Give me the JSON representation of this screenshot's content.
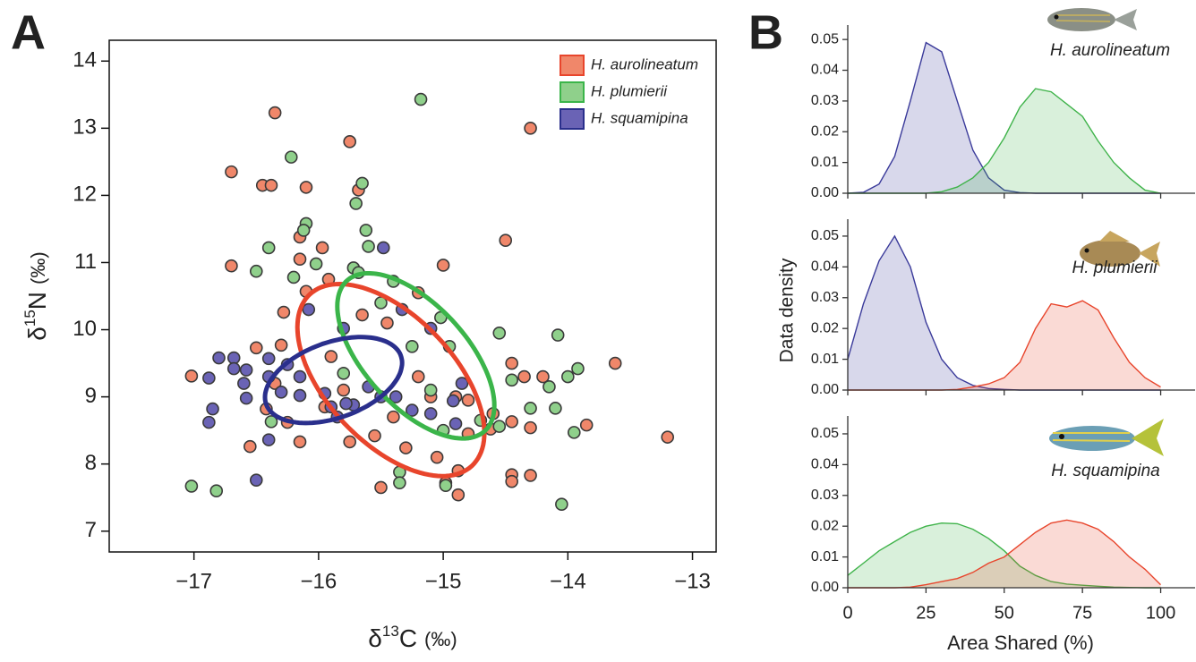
{
  "chart_data": [
    {
      "type": "scatter",
      "panel_label": "A",
      "xlabel": [
        "δ",
        "13",
        "C",
        "(‰)"
      ],
      "ylabel": [
        "δ",
        "15",
        "N",
        "(‰)"
      ],
      "xlim": [
        -17.68,
        -12.81
      ],
      "ylim": [
        6.69,
        14.31
      ],
      "xticks": [
        {
          "value": -17,
          "label": "−17"
        },
        {
          "value": -16,
          "label": "−16"
        },
        {
          "value": -15,
          "label": "−15"
        },
        {
          "value": -14,
          "label": "−14"
        },
        {
          "value": -13,
          "label": "−13"
        }
      ],
      "yticks": [
        7,
        8,
        9,
        10,
        11,
        12,
        13,
        14
      ],
      "legend": "top-right",
      "series": [
        {
          "name": "H. aurolineatum",
          "color": "#f0876a",
          "x": [
            -16.35,
            -15.75,
            -14.3,
            -16.7,
            -16.45,
            -16.38,
            -16.1,
            -15.68,
            -16.15,
            -14.5,
            -15.97,
            -16.15,
            -16.7,
            -15.0,
            -15.92,
            -16.1,
            -15.2,
            -16.28,
            -15.65,
            -15.45,
            -16.3,
            -16.5,
            -17.02,
            -16.35,
            -15.9,
            -13.62,
            -14.45,
            -14.35,
            -14.2,
            -16.42,
            -16.25,
            -16.55,
            -16.15,
            -15.75,
            -15.55,
            -14.8,
            -14.62,
            -14.45,
            -13.2,
            -13.85,
            -14.3,
            -15.05,
            -14.88,
            -14.45,
            -14.3,
            -14.45,
            -15.5,
            -14.98,
            -14.88,
            -15.3,
            -15.1,
            -14.9,
            -15.8,
            -15.95,
            -14.8,
            -15.2,
            -14.6,
            -15.4
          ],
          "values": [
            13.23,
            12.8,
            13.0,
            12.35,
            12.15,
            12.15,
            12.12,
            12.08,
            11.38,
            11.33,
            11.22,
            11.05,
            10.95,
            10.96,
            10.75,
            10.57,
            10.55,
            10.26,
            10.22,
            10.1,
            9.77,
            9.73,
            9.31,
            9.2,
            9.6,
            9.5,
            9.5,
            9.3,
            9.3,
            8.82,
            8.62,
            8.26,
            8.33,
            8.33,
            8.42,
            8.45,
            8.52,
            8.63,
            8.4,
            8.58,
            8.54,
            8.1,
            7.9,
            7.84,
            7.83,
            7.74,
            7.65,
            7.72,
            7.54,
            8.24,
            9.0,
            9.0,
            9.1,
            8.85,
            8.95,
            9.3,
            8.75,
            8.7
          ],
          "ellipse": {
            "color": "#e8452c",
            "center": [
              -15.42,
              9.25
            ],
            "rx": 0.75,
            "ry": 1.43,
            "rho": -0.55
          }
        },
        {
          "name": "H. plumierii",
          "color": "#8fd08b",
          "x": [
            -15.18,
            -16.22,
            -15.65,
            -15.7,
            -16.1,
            -16.12,
            -15.62,
            -16.4,
            -15.6,
            -16.02,
            -16.5,
            -15.72,
            -15.68,
            -16.2,
            -15.4,
            -15.5,
            -15.02,
            -14.55,
            -14.08,
            -15.25,
            -14.95,
            -14.45,
            -14.0,
            -13.92,
            -14.15,
            -14.3,
            -14.1,
            -13.95,
            -14.55,
            -15.0,
            -15.35,
            -15.35,
            -14.98,
            -14.05,
            -17.02,
            -16.82,
            -16.38,
            -15.8,
            -15.1,
            -14.7
          ],
          "values": [
            13.43,
            12.57,
            12.18,
            11.88,
            11.58,
            11.48,
            11.48,
            11.22,
            11.24,
            10.98,
            10.87,
            10.92,
            10.85,
            10.78,
            10.72,
            10.4,
            10.18,
            9.95,
            9.92,
            9.75,
            9.75,
            9.25,
            9.3,
            9.42,
            9.15,
            8.83,
            8.83,
            8.47,
            8.56,
            8.5,
            7.88,
            7.72,
            7.68,
            7.4,
            7.67,
            7.6,
            8.63,
            9.35,
            9.1,
            8.65
          ],
          "ellipse": {
            "color": "#3bb54a",
            "center": [
              -15.22,
              9.61
            ],
            "rx": 0.63,
            "ry": 1.23,
            "rho": -0.6
          }
        },
        {
          "name": "H. squamipina",
          "color": "#6a63b5",
          "x": [
            -15.48,
            -16.08,
            -15.33,
            -15.1,
            -15.8,
            -16.8,
            -16.68,
            -16.4,
            -16.25,
            -16.68,
            -16.58,
            -16.88,
            -16.6,
            -16.4,
            -16.15,
            -16.3,
            -16.15,
            -16.58,
            -16.85,
            -16.88,
            -16.5,
            -16.4,
            -15.9,
            -15.72,
            -15.78,
            -15.38,
            -15.1,
            -14.9,
            -14.92,
            -15.25,
            -15.5,
            -15.6,
            -15.85,
            -15.95,
            -14.85
          ],
          "values": [
            11.22,
            10.3,
            10.3,
            10.02,
            10.02,
            9.58,
            9.58,
            9.57,
            9.48,
            9.42,
            9.4,
            9.28,
            9.2,
            9.3,
            9.3,
            9.07,
            9.02,
            8.98,
            8.82,
            8.62,
            7.76,
            8.36,
            8.85,
            8.88,
            8.9,
            9.0,
            8.75,
            8.6,
            8.94,
            8.8,
            9.0,
            9.15,
            8.7,
            9.05,
            9.2
          ],
          "ellipse": {
            "color": "#2a2f8c",
            "center": [
              -15.88,
              9.25
            ],
            "rx": 0.55,
            "ry": 0.64,
            "rho": 0.4
          }
        }
      ]
    },
    {
      "type": "area",
      "panel_label": "B",
      "label": "H. aurolineatum",
      "x": [
        0,
        5,
        10,
        15,
        20,
        25,
        30,
        35,
        40,
        45,
        50,
        55,
        60,
        65,
        70,
        75,
        80,
        85,
        90,
        95,
        100
      ],
      "xlim": [
        0,
        111
      ],
      "xticks": [
        0,
        25,
        50,
        75,
        100
      ],
      "ylim": [
        0,
        0.0547
      ],
      "yticks": [
        {
          "value": 0,
          "label": "0.00"
        },
        {
          "value": 0.01,
          "label": "0.01"
        },
        {
          "value": 0.02,
          "label": "0.02"
        },
        {
          "value": 0.03,
          "label": "0.03"
        },
        {
          "value": 0.04,
          "label": "0.04"
        },
        {
          "value": 0.05,
          "label": "0.05"
        }
      ],
      "series": [
        {
          "color": "#3a3a9a",
          "values": [
            0,
            0.0003,
            0.003,
            0.012,
            0.03,
            0.049,
            0.046,
            0.03,
            0.014,
            0.005,
            0.001,
            0.0002,
            0,
            0,
            0,
            0,
            0,
            0,
            0,
            0,
            0
          ]
        },
        {
          "color": "#3fb34a",
          "values": [
            0,
            0,
            0,
            0,
            0,
            0,
            0.0005,
            0.002,
            0.005,
            0.01,
            0.018,
            0.028,
            0.034,
            0.033,
            0.029,
            0.025,
            0.017,
            0.01,
            0.005,
            0.001,
            0
          ]
        }
      ]
    },
    {
      "type": "area",
      "label": "H. plumierii",
      "ylabel": "Data density",
      "x": [
        0,
        5,
        10,
        15,
        20,
        25,
        30,
        35,
        40,
        45,
        50,
        55,
        60,
        65,
        70,
        75,
        80,
        85,
        90,
        95,
        100
      ],
      "xlim": [
        0,
        111
      ],
      "xticks": [
        0,
        25,
        50,
        75,
        100
      ],
      "ylim": [
        0,
        0.0555
      ],
      "yticks": [
        {
          "value": 0,
          "label": "0.00"
        },
        {
          "value": 0.01,
          "label": "0.01"
        },
        {
          "value": 0.02,
          "label": "0.02"
        },
        {
          "value": 0.03,
          "label": "0.03"
        },
        {
          "value": 0.04,
          "label": "0.04"
        },
        {
          "value": 0.05,
          "label": "0.05"
        }
      ],
      "series": [
        {
          "color": "#3a3a9a",
          "values": [
            0.01,
            0.028,
            0.042,
            0.05,
            0.04,
            0.022,
            0.01,
            0.004,
            0.0015,
            0.0005,
            0.0002,
            0,
            0,
            0,
            0,
            0,
            0,
            0,
            0,
            0,
            0
          ]
        },
        {
          "color": "#e8452c",
          "values": [
            0,
            0,
            0,
            0,
            0,
            0,
            0,
            0.0002,
            0.001,
            0.002,
            0.004,
            0.009,
            0.02,
            0.028,
            0.027,
            0.029,
            0.026,
            0.017,
            0.009,
            0.004,
            0.001
          ]
        }
      ]
    },
    {
      "type": "area",
      "label": "H. squamipina",
      "xlabel": "Area Shared (%)",
      "x": [
        0,
        5,
        10,
        15,
        20,
        25,
        30,
        35,
        40,
        45,
        50,
        55,
        60,
        65,
        70,
        75,
        80,
        85,
        90,
        95,
        100
      ],
      "xlim": [
        0,
        111
      ],
      "xticks": [
        0,
        25,
        50,
        75,
        100
      ],
      "ylim": [
        0,
        0.0558
      ],
      "yticks": [
        {
          "value": 0,
          "label": "0.00"
        },
        {
          "value": 0.01,
          "label": "0.01"
        },
        {
          "value": 0.02,
          "label": "0.02"
        },
        {
          "value": 0.03,
          "label": "0.03"
        },
        {
          "value": 0.04,
          "label": "0.04"
        },
        {
          "value": 0.05,
          "label": "0.05"
        }
      ],
      "series": [
        {
          "color": "#3fb34a",
          "values": [
            0.004,
            0.008,
            0.012,
            0.015,
            0.018,
            0.02,
            0.021,
            0.0208,
            0.019,
            0.016,
            0.012,
            0.007,
            0.004,
            0.002,
            0.0012,
            0.0008,
            0.0005,
            0.0002,
            0.0001,
            0,
            0
          ]
        },
        {
          "color": "#e8452c",
          "values": [
            0,
            0,
            0,
            0,
            0.0002,
            0.001,
            0.002,
            0.003,
            0.005,
            0.008,
            0.01,
            0.014,
            0.018,
            0.021,
            0.022,
            0.021,
            0.019,
            0.015,
            0.01,
            0.006,
            0.001
          ]
        }
      ]
    }
  ]
}
